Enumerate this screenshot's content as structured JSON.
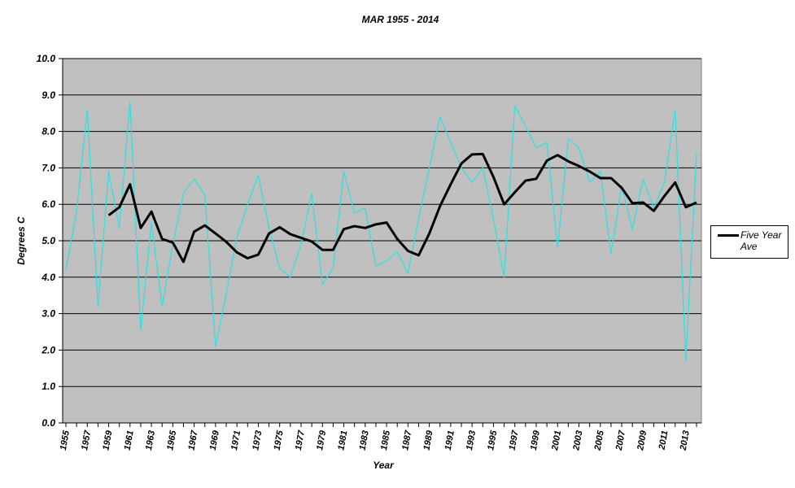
{
  "chart_data": {
    "type": "line",
    "title": "MAR 1955 - 2014",
    "x_label": "Year",
    "y_label": "Degrees C",
    "x": [
      1955,
      1956,
      1957,
      1958,
      1959,
      1960,
      1961,
      1962,
      1963,
      1964,
      1965,
      1966,
      1967,
      1968,
      1969,
      1970,
      1971,
      1972,
      1973,
      1974,
      1975,
      1976,
      1977,
      1978,
      1979,
      1980,
      1981,
      1982,
      1983,
      1984,
      1985,
      1986,
      1987,
      1988,
      1989,
      1990,
      1991,
      1992,
      1993,
      1994,
      1995,
      1996,
      1997,
      1998,
      1999,
      2000,
      2001,
      2002,
      2003,
      2004,
      2005,
      2006,
      2007,
      2008,
      2009,
      2010,
      2011,
      2012,
      2013,
      2014
    ],
    "series": [
      {
        "color": "#33e0e0",
        "values": [
          4.2,
          5.8,
          8.6,
          3.2,
          6.9,
          5.35,
          8.8,
          2.55,
          5.5,
          3.2,
          4.9,
          6.3,
          6.7,
          6.25,
          2.1,
          3.55,
          5.1,
          6.0,
          6.8,
          5.35,
          4.25,
          4.0,
          4.9,
          6.3,
          3.8,
          4.25,
          6.9,
          5.75,
          5.9,
          4.3,
          4.45,
          4.7,
          4.1,
          5.6,
          7.0,
          8.4,
          7.7,
          7.0,
          6.6,
          7.0,
          5.6,
          4.0,
          8.7,
          8.15,
          7.55,
          7.7,
          4.8,
          7.8,
          7.55,
          6.6,
          6.9,
          4.65,
          6.5,
          5.3,
          6.7,
          5.9,
          6.6,
          8.6,
          1.7,
          7.4
        ]
      },
      {
        "name": "Five Year Ave",
        "color": "#000000",
        "values": [
          null,
          null,
          null,
          null,
          5.7,
          5.92,
          6.55,
          5.35,
          5.8,
          5.05,
          4.95,
          4.42,
          5.25,
          5.42,
          5.2,
          4.97,
          4.68,
          4.52,
          4.62,
          5.2,
          5.37,
          5.18,
          5.08,
          4.98,
          4.75,
          4.75,
          5.32,
          5.4,
          5.35,
          5.45,
          5.5,
          5.05,
          4.72,
          4.6,
          5.2,
          5.95,
          6.55,
          7.12,
          7.37,
          7.38,
          6.75,
          6.0,
          6.33,
          6.65,
          6.7,
          7.2,
          7.35,
          7.18,
          7.05,
          6.9,
          6.72,
          6.72,
          6.45,
          6.03,
          6.05,
          5.82,
          6.23,
          6.6,
          5.92,
          6.05
        ]
      }
    ],
    "xlim": [
      1955,
      2014
    ],
    "xticks": [
      1955,
      1957,
      1959,
      1961,
      1963,
      1965,
      1967,
      1969,
      1971,
      1973,
      1975,
      1977,
      1979,
      1981,
      1983,
      1985,
      1987,
      1989,
      1991,
      1993,
      1995,
      1997,
      1999,
      2001,
      2003,
      2005,
      2007,
      2009,
      2011,
      2013
    ],
    "ylim": [
      0,
      10
    ],
    "yticks": [
      {
        "value": 0,
        "label": "0.0"
      },
      {
        "value": 1,
        "label": "1.0"
      },
      {
        "value": 2,
        "label": "2.0"
      },
      {
        "value": 3,
        "label": "3.0"
      },
      {
        "value": 4,
        "label": "4.0"
      },
      {
        "value": 5,
        "label": "5.0"
      },
      {
        "value": 6,
        "label": "6.0"
      },
      {
        "value": 7,
        "label": "7.0"
      },
      {
        "value": 8,
        "label": "8.0"
      },
      {
        "value": 9,
        "label": "9.0"
      },
      {
        "value": 10,
        "label": "10.0"
      }
    ],
    "grid": true,
    "legend": "right",
    "plot_background": "#c0c0c0"
  }
}
